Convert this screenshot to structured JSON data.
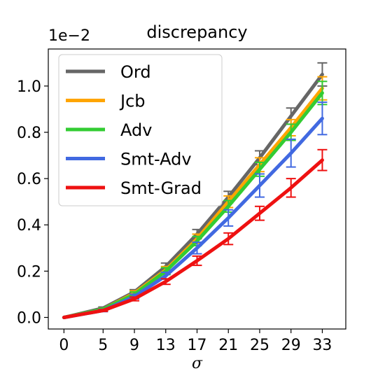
{
  "chart_data": {
    "type": "line",
    "title": "discrepancy",
    "xlabel": "σ",
    "ylabel": "",
    "y_offset_label": "1e−2",
    "x": [
      0,
      5,
      9,
      13,
      17,
      21,
      25,
      29,
      33
    ],
    "x_tick_labels": [
      "0",
      "5",
      "9",
      "13",
      "17",
      "21",
      "25",
      "29",
      "33"
    ],
    "y_ticks": [
      0.0,
      0.2,
      0.4,
      0.6,
      0.8,
      1.0
    ],
    "y_tick_labels": [
      "0.0",
      "0.2",
      "0.4",
      "0.6",
      "0.8",
      "1.0"
    ],
    "xlim": [
      -2,
      36
    ],
    "ylim": [
      -0.05,
      1.16
    ],
    "grid": false,
    "legend_position": "upper-left",
    "series": [
      {
        "name": "Ord",
        "color": "#666666",
        "values": [
          0.0,
          0.04,
          0.11,
          0.22,
          0.36,
          0.52,
          0.69,
          0.87,
          1.05
        ],
        "errors": [
          0.0,
          0.005,
          0.01,
          0.015,
          0.02,
          0.025,
          0.03,
          0.035,
          0.05
        ]
      },
      {
        "name": "Jcb",
        "color": "#ffa500",
        "values": [
          0.0,
          0.035,
          0.105,
          0.205,
          0.34,
          0.5,
          0.66,
          0.82,
          0.99
        ],
        "errors": [
          0.0,
          0.005,
          0.01,
          0.015,
          0.02,
          0.025,
          0.03,
          0.035,
          0.05
        ]
      },
      {
        "name": "Adv",
        "color": "#33cc33",
        "values": [
          0.0,
          0.035,
          0.1,
          0.2,
          0.33,
          0.48,
          0.64,
          0.8,
          0.97
        ],
        "errors": [
          0.0,
          0.005,
          0.01,
          0.015,
          0.02,
          0.025,
          0.03,
          0.035,
          0.05
        ]
      },
      {
        "name": "Smt-Adv",
        "color": "#4169e1",
        "values": [
          0.0,
          0.03,
          0.09,
          0.18,
          0.3,
          0.43,
          0.57,
          0.71,
          0.86
        ],
        "errors": [
          0.0,
          0.005,
          0.01,
          0.015,
          0.025,
          0.035,
          0.05,
          0.06,
          0.07
        ]
      },
      {
        "name": "Smt-Grad",
        "color": "#ee1111",
        "values": [
          0.0,
          0.03,
          0.08,
          0.155,
          0.245,
          0.34,
          0.45,
          0.56,
          0.68
        ],
        "errors": [
          0.0,
          0.004,
          0.008,
          0.012,
          0.02,
          0.025,
          0.03,
          0.04,
          0.045
        ]
      }
    ]
  }
}
